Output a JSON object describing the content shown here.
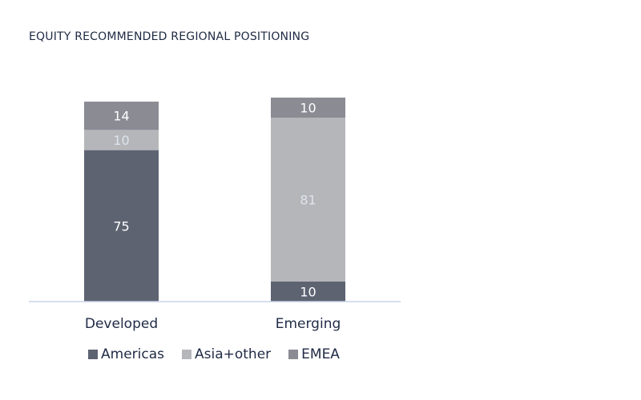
{
  "chart_data": {
    "type": "bar",
    "stacked": true,
    "title": "EQUITY RECOMMENDED REGIONAL POSITIONING",
    "categories": [
      "Developed",
      "Emerging"
    ],
    "series": [
      {
        "name": "Americas",
        "values": [
          75,
          10
        ],
        "color": "#5e6372",
        "label_color": "#ffffff"
      },
      {
        "name": "Asia+other",
        "values": [
          10,
          81
        ],
        "color": "#b5b6ba",
        "label_color": "#dde4ee"
      },
      {
        "name": "EMEA",
        "values": [
          14,
          10
        ],
        "color": "#8a8b93",
        "label_color": "#ffffff"
      }
    ],
    "ylim": [
      0,
      101
    ],
    "grid": false,
    "legend": "bottom",
    "axis_color": "#c8d3e6"
  }
}
